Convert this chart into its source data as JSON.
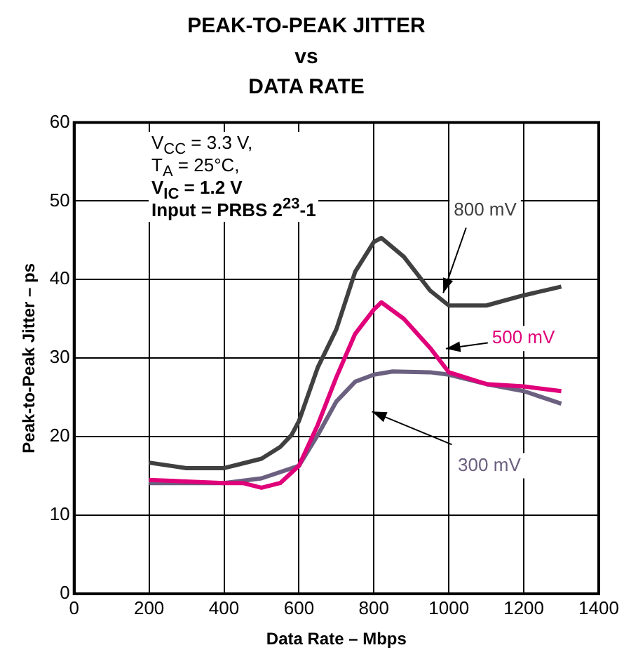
{
  "chart_data": {
    "type": "line",
    "title": "PEAK-TO-PEAK JITTER\nvs\nDATA RATE",
    "xlabel": "Data Rate – Mbps",
    "ylabel": "Peak-to-Peak Jitter – ps",
    "xlim": [
      0,
      1400
    ],
    "xticks": [
      0,
      200,
      400,
      600,
      800,
      1000,
      1200,
      1400
    ],
    "ylim": [
      0,
      60
    ],
    "yticks": [
      0,
      10,
      20,
      30,
      40,
      50,
      60
    ],
    "grid": true,
    "legend": false,
    "marker": "none",
    "line_style": "solid",
    "annotations": [
      "V$_{CC}$ = 3.3 V,",
      "T$_{A}$ = 25°C,",
      "V$_{IC}$ = 1.2 V",
      "Input = PRBS 2$^{23}$-1"
    ],
    "series": [
      {
        "name": "800 mV",
        "color": "#404040",
        "x": [
          200,
          300,
          400,
          450,
          500,
          550,
          580,
          600,
          650,
          700,
          750,
          800,
          820,
          880,
          950,
          1000,
          1100,
          1200,
          1300
        ],
        "values": [
          16.7,
          16,
          16,
          16.6,
          17.2,
          18.7,
          20.2,
          22,
          28.8,
          33.7,
          41,
          44.8,
          45.3,
          42.9,
          38.6,
          36.7,
          36.7,
          38,
          39.1
        ]
      },
      {
        "name": "500 mV",
        "color": "#e0007a",
        "x": [
          200,
          400,
          450,
          500,
          550,
          600,
          650,
          700,
          750,
          800,
          820,
          880,
          950,
          1000,
          1100,
          1200,
          1300
        ],
        "values": [
          14.5,
          14.1,
          14.1,
          13.5,
          14.1,
          16.3,
          21.5,
          27.6,
          33.1,
          36.2,
          37.1,
          35,
          31.3,
          28.2,
          26.7,
          26.4,
          25.8
        ]
      },
      {
        "name": "300 mV",
        "color": "#6c6080",
        "x": [
          200,
          400,
          500,
          600,
          650,
          700,
          750,
          800,
          850,
          950,
          1000,
          1100,
          1200,
          1300
        ],
        "values": [
          14.1,
          14.1,
          14.7,
          16.3,
          20.2,
          24.5,
          27,
          27.9,
          28.3,
          28.2,
          27.9,
          26.7,
          25.8,
          24.2
        ]
      }
    ]
  }
}
